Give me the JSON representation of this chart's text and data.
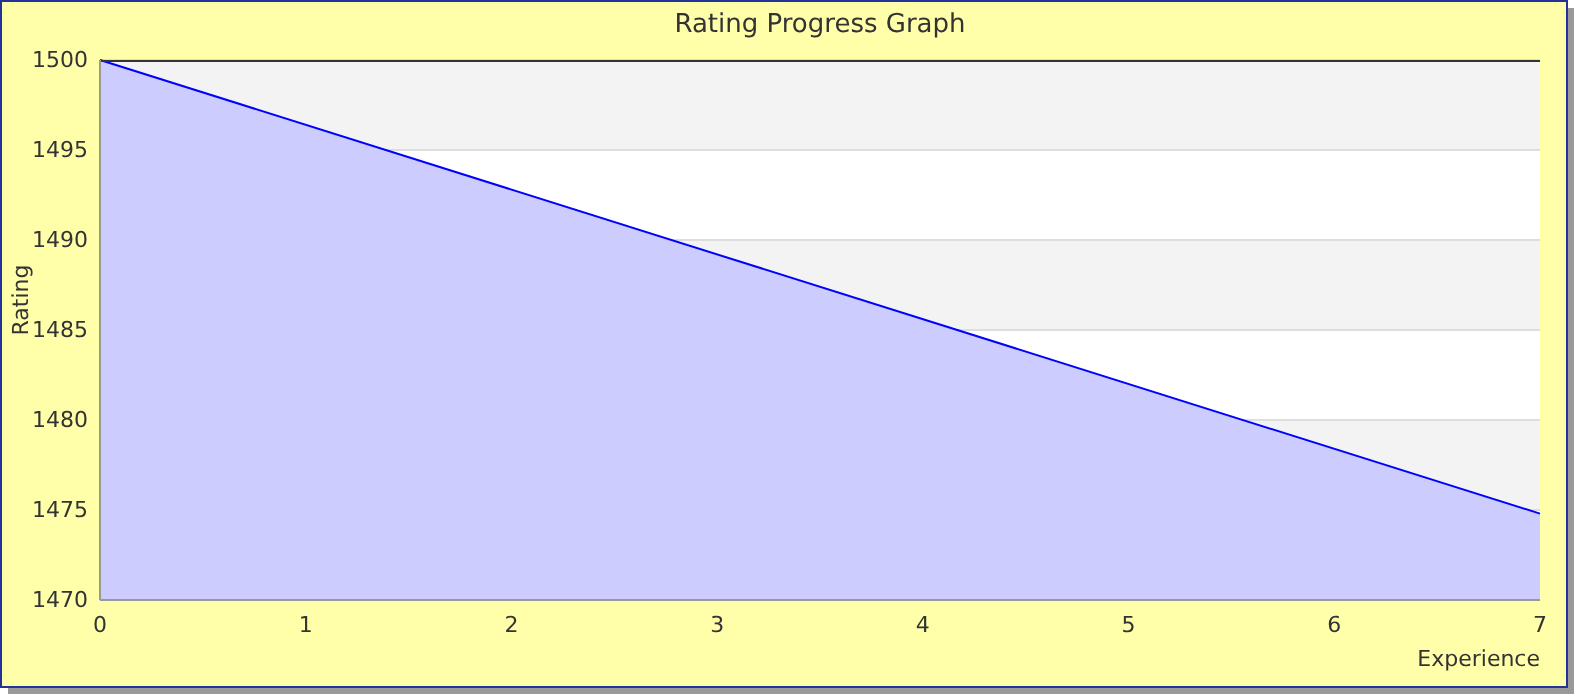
{
  "chart_data": {
    "type": "area",
    "title": "Rating Progress Graph",
    "xlabel": "Experience",
    "ylabel": "Rating",
    "x": [
      0,
      7
    ],
    "series": [
      {
        "color": "#0000ff",
        "values": [
          1500,
          1474.8
        ]
      }
    ],
    "xlim": [
      0,
      7
    ],
    "xticks": [
      0,
      1,
      2,
      3,
      4,
      5,
      6,
      7
    ],
    "ylim": [
      1470,
      1500
    ],
    "yticks": [
      1470,
      1475,
      1480,
      1485,
      1490,
      1495,
      1500
    ],
    "grid": "y"
  }
}
